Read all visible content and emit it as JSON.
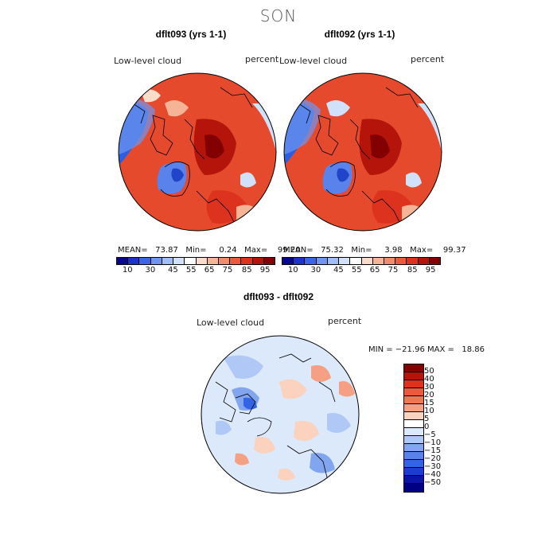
{
  "season": "SON",
  "panels": [
    {
      "title": "dflt093 (yrs 1-1)",
      "variable": "Low-level cloud",
      "units": "percent",
      "stats": "MEAN=   73.87   Min=     0.24   Max=    99.20"
    },
    {
      "title": "dflt092 (yrs 1-1)",
      "variable": "Low-level cloud",
      "units": "percent",
      "stats": "MEAN=   75.32   Min=     3.98   Max=    99.37"
    }
  ],
  "diff_panel": {
    "title": "dflt093 - dflt092",
    "variable": "Low-level cloud",
    "units": "percent",
    "stats": "MIN = −21.96 MAX =   18.86"
  },
  "abs_colorbar": {
    "colors": [
      "#08088c",
      "#1c32c8",
      "#3c64e6",
      "#6e96f0",
      "#a0bef5",
      "#d2e1fa",
      "#ffffff",
      "#fadcc8",
      "#f5b496",
      "#f08c6e",
      "#eb5a3c",
      "#dc321e",
      "#b4140a",
      "#820000"
    ],
    "tick_labels": [
      "10",
      "30",
      "45",
      "55",
      "65",
      "75",
      "85",
      "95"
    ]
  },
  "diff_colorbar": {
    "colors": [
      "#820000",
      "#b4140a",
      "#dc321e",
      "#eb5a3c",
      "#f07850",
      "#f5a082",
      "#fad2be",
      "#ffffff",
      "#dce9fa",
      "#afc8f5",
      "#82a5f0",
      "#5a82eb",
      "#3264e6",
      "#1c3cd2",
      "#0a14aa",
      "#000082"
    ],
    "tick_labels": [
      "50",
      "40",
      "30",
      "20",
      "15",
      "10",
      "5",
      "0",
      "−5",
      "−10",
      "−15",
      "−20",
      "−30",
      "−40",
      "−50"
    ]
  }
}
